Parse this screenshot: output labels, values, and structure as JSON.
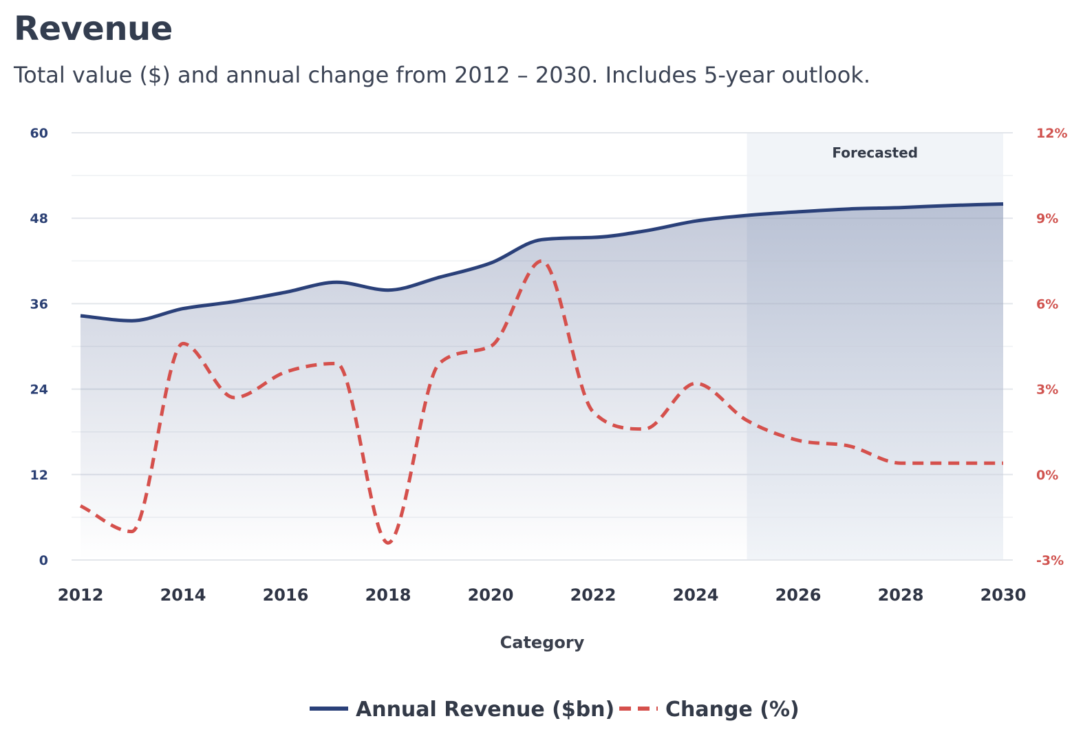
{
  "header": {
    "title": "Revenue",
    "subtitle": "Total value ($) and annual change from 2012 – 2030. Includes 5-year outlook."
  },
  "chart_data": {
    "type": "line",
    "title": "Revenue",
    "subtitle": "Total value ($) and annual change from 2012 – 2030. Includes 5-year outlook.",
    "xlabel": "Category",
    "x": [
      2012,
      2013,
      2014,
      2015,
      2016,
      2017,
      2018,
      2019,
      2020,
      2021,
      2022,
      2023,
      2024,
      2025,
      2026,
      2027,
      2028,
      2029,
      2030
    ],
    "x_ticks": [
      "2012",
      "2014",
      "2016",
      "2018",
      "2020",
      "2022",
      "2024",
      "2026",
      "2028",
      "2030"
    ],
    "y_left": {
      "ticks": [
        "0",
        "12",
        "24",
        "36",
        "48",
        "60"
      ],
      "range": [
        0,
        60
      ]
    },
    "y_right": {
      "ticks": [
        "-3%",
        "0%",
        "3%",
        "6%",
        "9%",
        "12%"
      ],
      "range": [
        -3,
        12
      ]
    },
    "series": [
      {
        "name": "Annual Revenue ($bn)",
        "axis": "left",
        "style": "solid",
        "area_fill": true,
        "color": "#2a4079",
        "values": [
          34.3,
          33.6,
          35.3,
          36.3,
          37.6,
          39.0,
          37.9,
          39.7,
          41.7,
          45.0,
          45.3,
          46.2,
          47.6,
          48.4,
          48.9,
          49.3,
          49.5,
          49.8,
          50.0
        ]
      },
      {
        "name": "Change (%)",
        "axis": "right",
        "style": "dashed",
        "color": "#d5504c",
        "values": [
          -1.1,
          -2.0,
          4.6,
          2.7,
          3.6,
          3.9,
          -2.4,
          3.9,
          4.5,
          7.5,
          2.2,
          1.6,
          3.2,
          1.9,
          1.2,
          1.0,
          0.4,
          0.4,
          0.4
        ]
      }
    ],
    "annotations": [
      {
        "type": "band",
        "label": "Forecasted",
        "x_start": 2025,
        "x_end": 2030
      }
    ],
    "grid": true,
    "legend_position": "bottom-center",
    "colors": {
      "primary": "#2a4079",
      "secondary": "#d5504c",
      "band": "#f1f4f8"
    }
  }
}
